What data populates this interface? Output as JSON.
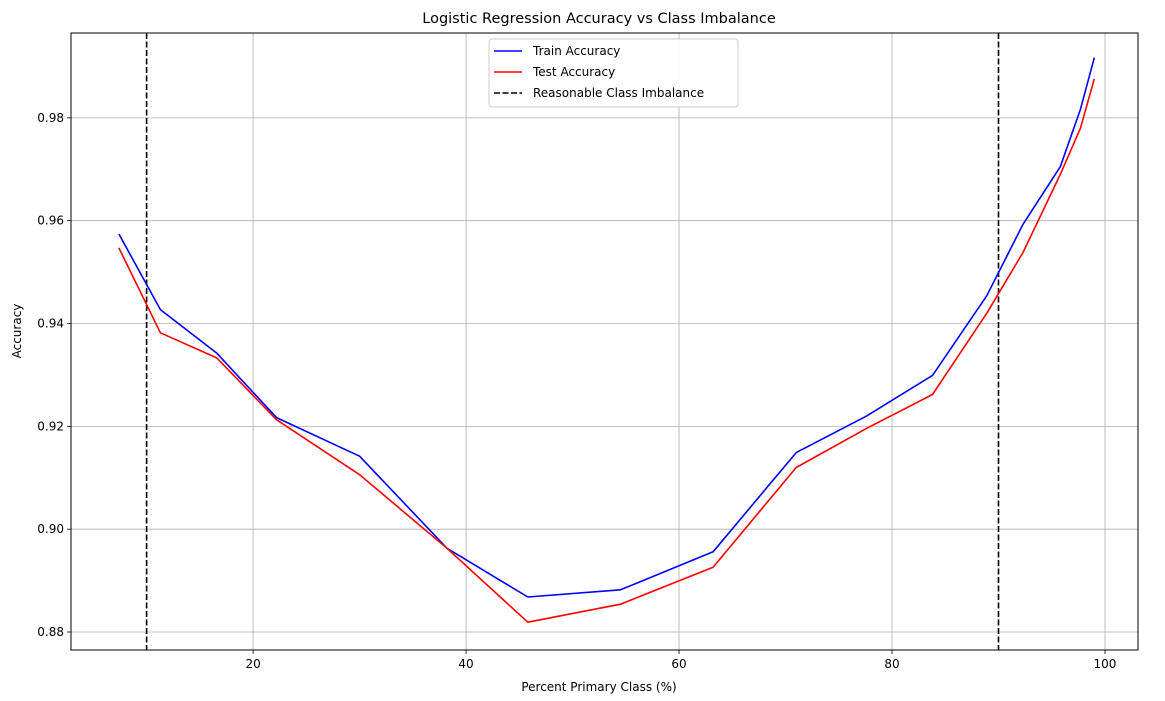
{
  "chart_data": {
    "type": "line",
    "title": "Logistic Regression Accuracy vs Class Imbalance",
    "xlabel": "Percent Primary Class (%)",
    "ylabel": "Accuracy",
    "xlim": [
      2.9,
      103.1
    ],
    "ylim": [
      0.8765,
      0.9965
    ],
    "xticks": [
      20,
      40,
      60,
      80,
      100
    ],
    "yticks": [
      0.88,
      0.9,
      0.92,
      0.94,
      0.96,
      0.98
    ],
    "xtick_labels": [
      "20",
      "40",
      "60",
      "80",
      "100"
    ],
    "ytick_labels": [
      "0.88",
      "0.90",
      "0.92",
      "0.94",
      "0.96",
      "0.98"
    ],
    "grid": true,
    "legend_position": "top-center",
    "series": [
      {
        "name": "Train Accuracy",
        "color": "#0000ff",
        "style": "solid",
        "x": [
          7.4,
          11.3,
          16.6,
          22.2,
          30.0,
          38.2,
          45.8,
          54.5,
          63.2,
          71.0,
          77.6,
          83.8,
          88.9,
          92.3,
          95.8,
          97.7,
          99.0
        ],
        "y": [
          0.9574,
          0.9427,
          0.9342,
          0.9217,
          0.9142,
          0.8963,
          0.8868,
          0.8882,
          0.8956,
          0.9149,
          0.922,
          0.9299,
          0.9454,
          0.9593,
          0.9705,
          0.9817,
          0.9917
        ]
      },
      {
        "name": "Test Accuracy",
        "color": "#ff0000",
        "style": "solid",
        "x": [
          7.4,
          11.3,
          16.6,
          22.2,
          30.0,
          38.2,
          45.8,
          54.5,
          63.2,
          71.0,
          77.6,
          83.8,
          88.9,
          92.3,
          95.8,
          97.7,
          99.0
        ],
        "y": [
          0.9547,
          0.9382,
          0.9333,
          0.9213,
          0.9106,
          0.8963,
          0.8819,
          0.8854,
          0.8926,
          0.912,
          0.9196,
          0.9262,
          0.942,
          0.9538,
          0.969,
          0.978,
          0.9876
        ]
      }
    ],
    "vlines": [
      {
        "name": "Reasonable Class Imbalance",
        "x": 10,
        "color": "#000000",
        "style": "dashed"
      },
      {
        "name": "",
        "x": 90,
        "color": "#000000",
        "style": "dashed"
      }
    ],
    "legend": [
      "Train Accuracy",
      "Test Accuracy",
      "Reasonable Class Imbalance"
    ]
  }
}
